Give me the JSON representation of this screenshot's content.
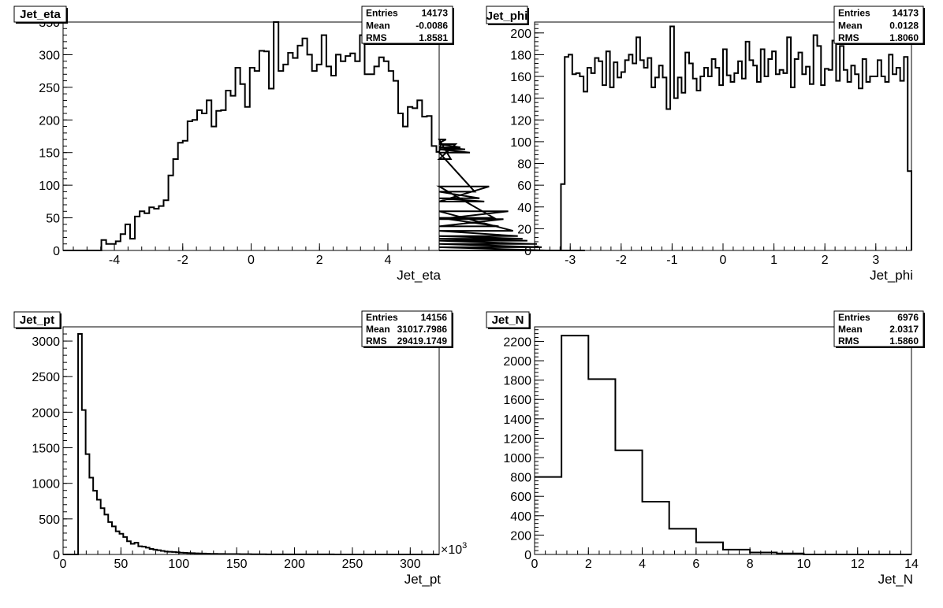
{
  "chart_data": [
    {
      "type": "bar",
      "title": "Jet_eta",
      "xlabel": "Jet_eta",
      "ylabel": "",
      "xlim": [
        -5.5,
        5.5
      ],
      "ylim": [
        0,
        350
      ],
      "x_ticks": [
        -4,
        -2,
        0,
        2,
        4
      ],
      "y_ticks": [
        0,
        50,
        100,
        150,
        200,
        250,
        300,
        350
      ],
      "stats": {
        "entries_label": "Entries",
        "entries": "14173",
        "mean_label": "Mean",
        "mean": "-0.0086",
        "rms_label": "RMS",
        "rms": "1.8581"
      },
      "bin_start": -5.5,
      "bin_width": 0.14,
      "values": [
        0,
        0,
        0,
        0,
        0,
        0,
        0,
        0,
        16,
        10,
        10,
        14,
        25,
        40,
        18,
        52,
        60,
        57,
        66,
        64,
        68,
        77,
        115,
        140,
        165,
        168,
        198,
        200,
        215,
        210,
        230,
        190,
        214,
        215,
        245,
        237,
        280,
        255,
        220,
        280,
        275,
        306,
        305,
        248,
        350,
        275,
        285,
        303,
        295,
        314,
        325,
        300,
        275,
        285,
        330,
        282,
        268,
        300,
        290,
        298,
        302,
        290,
        330,
        270,
        270,
        282,
        296,
        290,
        275,
        260,
        210,
        190,
        220,
        218,
        230,
        205,
        206,
        160,
        151,
        165,
        170,
        140,
        163,
        158,
        155,
        150,
        90,
        80,
        75,
        98,
        50,
        37,
        48,
        60,
        30,
        22,
        18,
        15,
        10,
        10,
        5,
        0,
        0,
        0,
        0,
        0,
        0,
        0,
        0,
        0
      ],
      "series": [
        {
          "values": []
        }
      ]
    },
    {
      "type": "bar",
      "title": "Jet_phi",
      "xlabel": "Jet_phi",
      "ylabel": "",
      "xlim": [
        -3.7,
        3.7
      ],
      "ylim": [
        0,
        210
      ],
      "x_ticks": [
        -3,
        -2,
        -1,
        0,
        1,
        2,
        3
      ],
      "y_ticks": [
        0,
        20,
        40,
        60,
        80,
        100,
        120,
        140,
        160,
        180,
        200
      ],
      "stats": {
        "entries_label": "Entries",
        "entries": "14173",
        "mean_label": "Mean",
        "mean": "0.0128",
        "rms_label": "RMS",
        "rms": "1.8060"
      },
      "bin_start": -3.7,
      "bin_width": 0.074,
      "values": [
        0,
        0,
        0,
        0,
        0,
        0,
        0,
        61,
        178,
        180,
        162,
        163,
        160,
        146,
        168,
        163,
        177,
        174,
        152,
        183,
        150,
        173,
        159,
        164,
        175,
        180,
        172,
        196,
        175,
        168,
        177,
        150,
        159,
        170,
        159,
        130,
        206,
        140,
        159,
        145,
        182,
        172,
        158,
        147,
        160,
        168,
        160,
        176,
        168,
        152,
        185,
        161,
        155,
        163,
        174,
        158,
        192,
        175,
        170,
        155,
        185,
        160,
        176,
        183,
        162,
        166,
        163,
        196,
        150,
        176,
        182,
        162,
        169,
        153,
        198,
        188,
        152,
        167,
        166,
        193,
        156,
        188,
        166,
        155,
        170,
        162,
        149,
        176,
        155,
        160,
        160,
        175,
        160,
        155,
        180,
        162,
        168,
        156,
        178,
        73,
        0
      ]
    },
    {
      "type": "bar",
      "title": "Jet_pt",
      "xlabel": "Jet_pt",
      "ylabel": "",
      "x_multiplier": "×10",
      "x_multiplier_exp": "3",
      "xlim": [
        0,
        325
      ],
      "ylim": [
        0,
        3200
      ],
      "x_ticks": [
        0,
        50,
        100,
        150,
        200,
        250,
        300
      ],
      "y_ticks": [
        0,
        500,
        1000,
        1500,
        2000,
        2500,
        3000
      ],
      "stats": {
        "entries_label": "Entries",
        "entries": "14156",
        "mean_label": "Mean",
        "mean": "31017.7986",
        "rms_label": "RMS",
        "rms": "29419.1749"
      },
      "bin_start": 0,
      "bin_width": 3.25,
      "values": [
        0,
        0,
        0,
        0,
        3100,
        2030,
        1410,
        1080,
        895,
        770,
        650,
        560,
        455,
        395,
        325,
        290,
        245,
        185,
        150,
        165,
        115,
        110,
        95,
        78,
        68,
        60,
        50,
        40,
        38,
        35,
        30,
        25,
        22,
        20,
        18,
        15,
        14,
        12,
        10,
        9,
        8,
        7,
        7,
        6,
        5,
        5,
        5,
        4,
        4,
        4,
        3,
        3,
        3,
        3,
        2,
        2,
        2,
        2,
        2,
        2,
        2,
        1,
        1,
        1,
        1,
        1,
        1,
        1,
        1,
        1,
        1,
        1,
        0,
        0,
        0,
        0,
        0,
        0,
        0,
        0,
        0,
        0,
        0,
        0,
        0,
        0,
        0,
        0,
        0,
        0,
        0,
        0,
        0,
        0,
        0,
        0,
        0,
        0,
        0,
        0
      ]
    },
    {
      "type": "bar",
      "title": "Jet_N",
      "xlabel": "Jet_N",
      "ylabel": "",
      "xlim": [
        0,
        14
      ],
      "ylim": [
        0,
        2350
      ],
      "x_ticks": [
        0,
        2,
        4,
        6,
        8,
        10,
        12,
        14
      ],
      "y_ticks": [
        0,
        200,
        400,
        600,
        800,
        1000,
        1200,
        1400,
        1600,
        1800,
        2000,
        2200
      ],
      "stats": {
        "entries_label": "Entries",
        "entries": "6976",
        "mean_label": "Mean",
        "mean": "2.0317",
        "rms_label": "RMS",
        "rms": "1.5860"
      },
      "bin_start": 0,
      "bin_width": 1,
      "values": [
        800,
        2260,
        1810,
        1075,
        545,
        265,
        125,
        50,
        20,
        10,
        0,
        0,
        0,
        0
      ]
    }
  ]
}
